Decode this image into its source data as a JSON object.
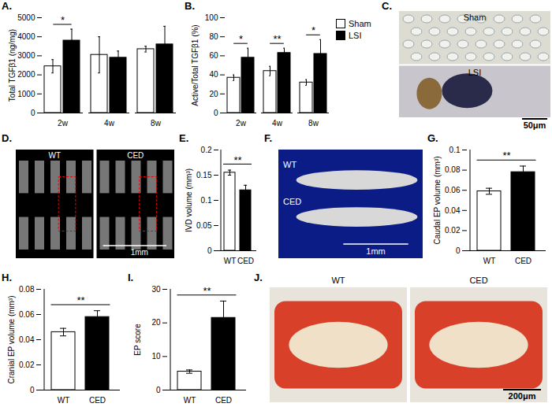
{
  "chart_data": [
    {
      "type": "bar",
      "title": "A.",
      "categories": [
        "2w",
        "4w",
        "8w"
      ],
      "series": [
        {
          "name": "Sham",
          "color": "#ffffff",
          "values": [
            2450,
            3050,
            3350
          ],
          "errors": [
            350,
            950,
            150
          ]
        },
        {
          "name": "LSI",
          "color": "#000000",
          "values": [
            3800,
            2900,
            3600
          ],
          "errors": [
            600,
            350,
            950
          ]
        }
      ],
      "ylabel": "Total TGFβ1 (ng/mg)",
      "ylim": [
        0,
        5000
      ],
      "yticks": [
        0,
        1000,
        2000,
        3000,
        4000,
        5000
      ],
      "annotations": [
        {
          "category": "2w",
          "text": "*"
        }
      ]
    },
    {
      "type": "bar",
      "title": "B.",
      "categories": [
        "2w",
        "4w",
        "8w"
      ],
      "series": [
        {
          "name": "Sham",
          "color": "#ffffff",
          "values": [
            37,
            44,
            32
          ],
          "errors": [
            3,
            5,
            3
          ]
        },
        {
          "name": "LSI",
          "color": "#000000",
          "values": [
            58,
            63,
            62
          ],
          "errors": [
            10,
            5,
            15
          ]
        }
      ],
      "ylabel": "Active/Total TGFβ1 (%)",
      "ylim": [
        0,
        100
      ],
      "yticks": [
        0,
        20,
        40,
        60,
        80,
        100
      ],
      "legend": "right",
      "annotations": [
        {
          "category": "2w",
          "text": "*"
        },
        {
          "category": "4w",
          "text": "**"
        },
        {
          "category": "8w",
          "text": "*"
        }
      ]
    },
    {
      "type": "image",
      "title": "C.",
      "labels": [
        "Sham",
        "LSI"
      ],
      "scale_label": "50μm"
    },
    {
      "type": "image",
      "title": "D.",
      "labels": [
        "WT",
        "CED"
      ],
      "scale_label": "1mm"
    },
    {
      "type": "bar",
      "title": "E.",
      "categories": [
        "WT",
        "CED"
      ],
      "values": [
        0.155,
        0.12
      ],
      "errors": [
        0.005,
        0.01
      ],
      "colors": [
        "#ffffff",
        "#000000"
      ],
      "ylabel": "IVD volume (mm³)",
      "ylim": [
        0,
        0.2
      ],
      "yticks": [
        0,
        0.05,
        0.1,
        0.15,
        0.2
      ],
      "annotations": [
        {
          "text": "**"
        }
      ]
    },
    {
      "type": "image",
      "title": "F.",
      "labels": [
        "WT",
        "CED"
      ],
      "scale_label": "1mm"
    },
    {
      "type": "bar",
      "title": "G.",
      "categories": [
        "WT",
        "CED"
      ],
      "values": [
        0.059,
        0.078
      ],
      "errors": [
        0.003,
        0.006
      ],
      "colors": [
        "#ffffff",
        "#000000"
      ],
      "ylabel": "Caudal EP volume (mm³)",
      "ylim": [
        0,
        0.1
      ],
      "yticks": [
        0,
        0.02,
        0.04,
        0.06,
        0.08,
        0.1
      ],
      "annotations": [
        {
          "text": "**"
        }
      ]
    },
    {
      "type": "bar",
      "title": "H.",
      "categories": [
        "WT",
        "CED"
      ],
      "values": [
        0.046,
        0.058
      ],
      "errors": [
        0.003,
        0.005
      ],
      "colors": [
        "#ffffff",
        "#000000"
      ],
      "ylabel": "Cranial EP volume (mm³)",
      "ylim": [
        0,
        0.08
      ],
      "yticks": [
        0,
        0.02,
        0.04,
        0.06,
        0.08
      ],
      "annotations": [
        {
          "text": "**"
        }
      ]
    },
    {
      "type": "bar",
      "title": "I.",
      "categories": [
        "WT",
        "CED"
      ],
      "values": [
        5.5,
        21.5
      ],
      "errors": [
        0.5,
        5
      ],
      "colors": [
        "#ffffff",
        "#000000"
      ],
      "ylabel": "EP score",
      "ylim": [
        0,
        30
      ],
      "yticks": [
        0,
        10,
        20,
        30
      ],
      "annotations": [
        {
          "text": "**"
        }
      ]
    },
    {
      "type": "image",
      "title": "J.",
      "labels": [
        "WT",
        "CED"
      ],
      "scale_label": "200μm"
    }
  ]
}
